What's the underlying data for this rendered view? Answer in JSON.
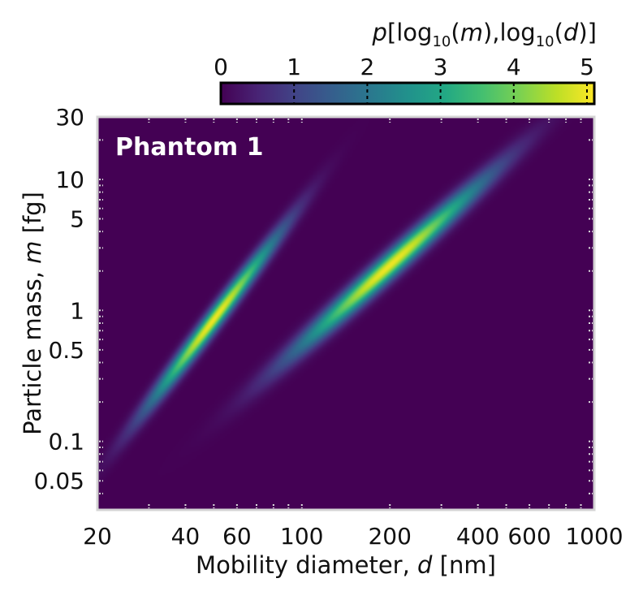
{
  "chart_data": {
    "type": "heatmap",
    "panel_label": "Phantom 1",
    "xlabel_prefix": "Mobility diameter, ",
    "xlabel_var": "d",
    "xlabel_suffix": " [nm]",
    "ylabel_prefix": "Particle mass, ",
    "ylabel_var": "m",
    "ylabel_suffix": " [fg]",
    "x_scale": "log",
    "y_scale": "log",
    "xlim": [
      20,
      1000
    ],
    "ylim": [
      0.03,
      30
    ],
    "x_ticks": [
      20,
      40,
      60,
      100,
      200,
      400,
      600,
      1000
    ],
    "x_tick_labels": [
      "20",
      "40",
      "60",
      "100",
      "200",
      "400",
      "600",
      "1000"
    ],
    "y_ticks": [
      0.05,
      0.1,
      0.5,
      1,
      5,
      10,
      30
    ],
    "y_tick_labels": [
      "0.05",
      "0.1",
      "0.5",
      "1",
      "5",
      "10",
      "30"
    ],
    "colorbar": {
      "label_var": "p",
      "label_text": "[log10(m),log10(d)]",
      "range": [
        0,
        5.1
      ],
      "ticks": [
        0,
        1,
        2,
        3,
        4,
        5
      ],
      "tick_labels": [
        "0",
        "1",
        "2",
        "3",
        "4",
        "5"
      ],
      "colormap": "viridis"
    },
    "modes": [
      {
        "center_d_nm": 50,
        "center_m_fg": 0.85,
        "peak": 5.0,
        "mass_mobility_slope": 2.9,
        "sigma_log10_d": 0.15,
        "sigma_log10_m_at_fixed_d": 0.07
      },
      {
        "center_d_nm": 200,
        "center_m_fg": 2.2,
        "peak": 5.0,
        "mass_mobility_slope": 2.0,
        "sigma_log10_d": 0.22,
        "sigma_log10_m_at_fixed_d": 0.075
      }
    ],
    "grid": false
  },
  "colors": {
    "background_min": "#440154",
    "panel_label": "#ffffff",
    "axis_frame": "#d4d4d4",
    "colorbar_frame": "#000000"
  }
}
